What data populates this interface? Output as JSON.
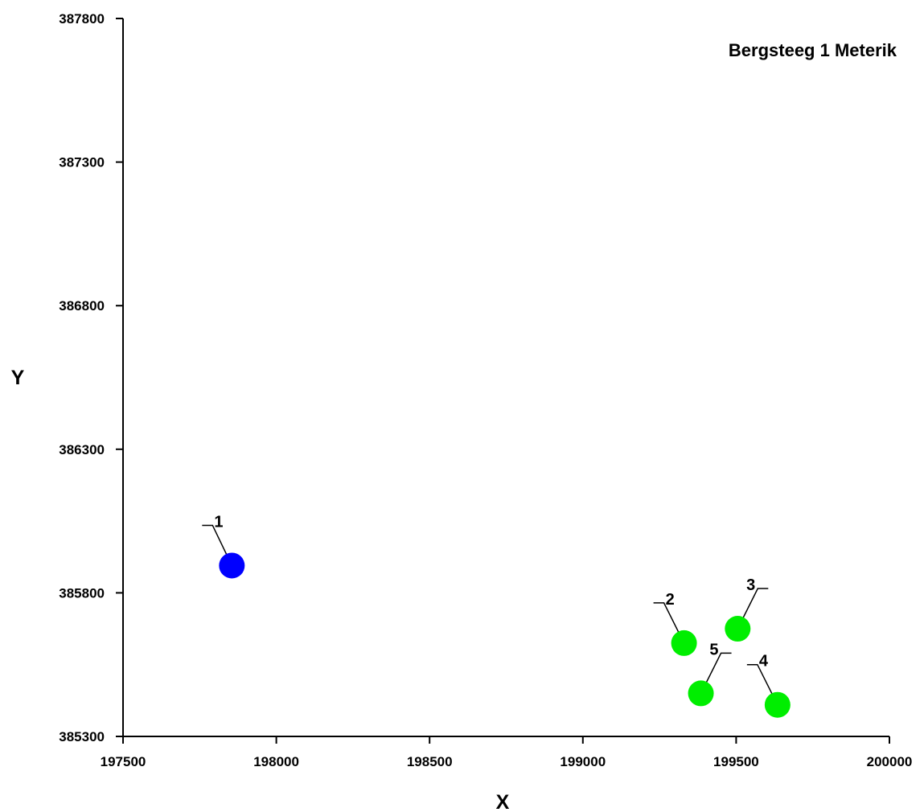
{
  "chart_data": {
    "type": "scatter",
    "title": "Bergsteeg 1 Meterik",
    "xlabel": "X",
    "ylabel": "Y",
    "xlim": [
      197500,
      200000
    ],
    "ylim": [
      385300,
      387800
    ],
    "x_ticks": [
      "197500",
      "198000",
      "198500",
      "199000",
      "199500",
      "200000"
    ],
    "y_ticks": [
      "385300",
      "385800",
      "386300",
      "386800",
      "387300",
      "387800"
    ],
    "grid": false,
    "points": [
      {
        "label": "1",
        "x": 197855,
        "y": 385895,
        "color": "#0000ff"
      },
      {
        "label": "2",
        "x": 199330,
        "y": 385625,
        "color": "#00ee00"
      },
      {
        "label": "3",
        "x": 199505,
        "y": 385675,
        "color": "#00ee00"
      },
      {
        "label": "4",
        "x": 199635,
        "y": 385410,
        "color": "#00ee00"
      },
      {
        "label": "5",
        "x": 199385,
        "y": 385450,
        "color": "#00ee00"
      }
    ]
  }
}
